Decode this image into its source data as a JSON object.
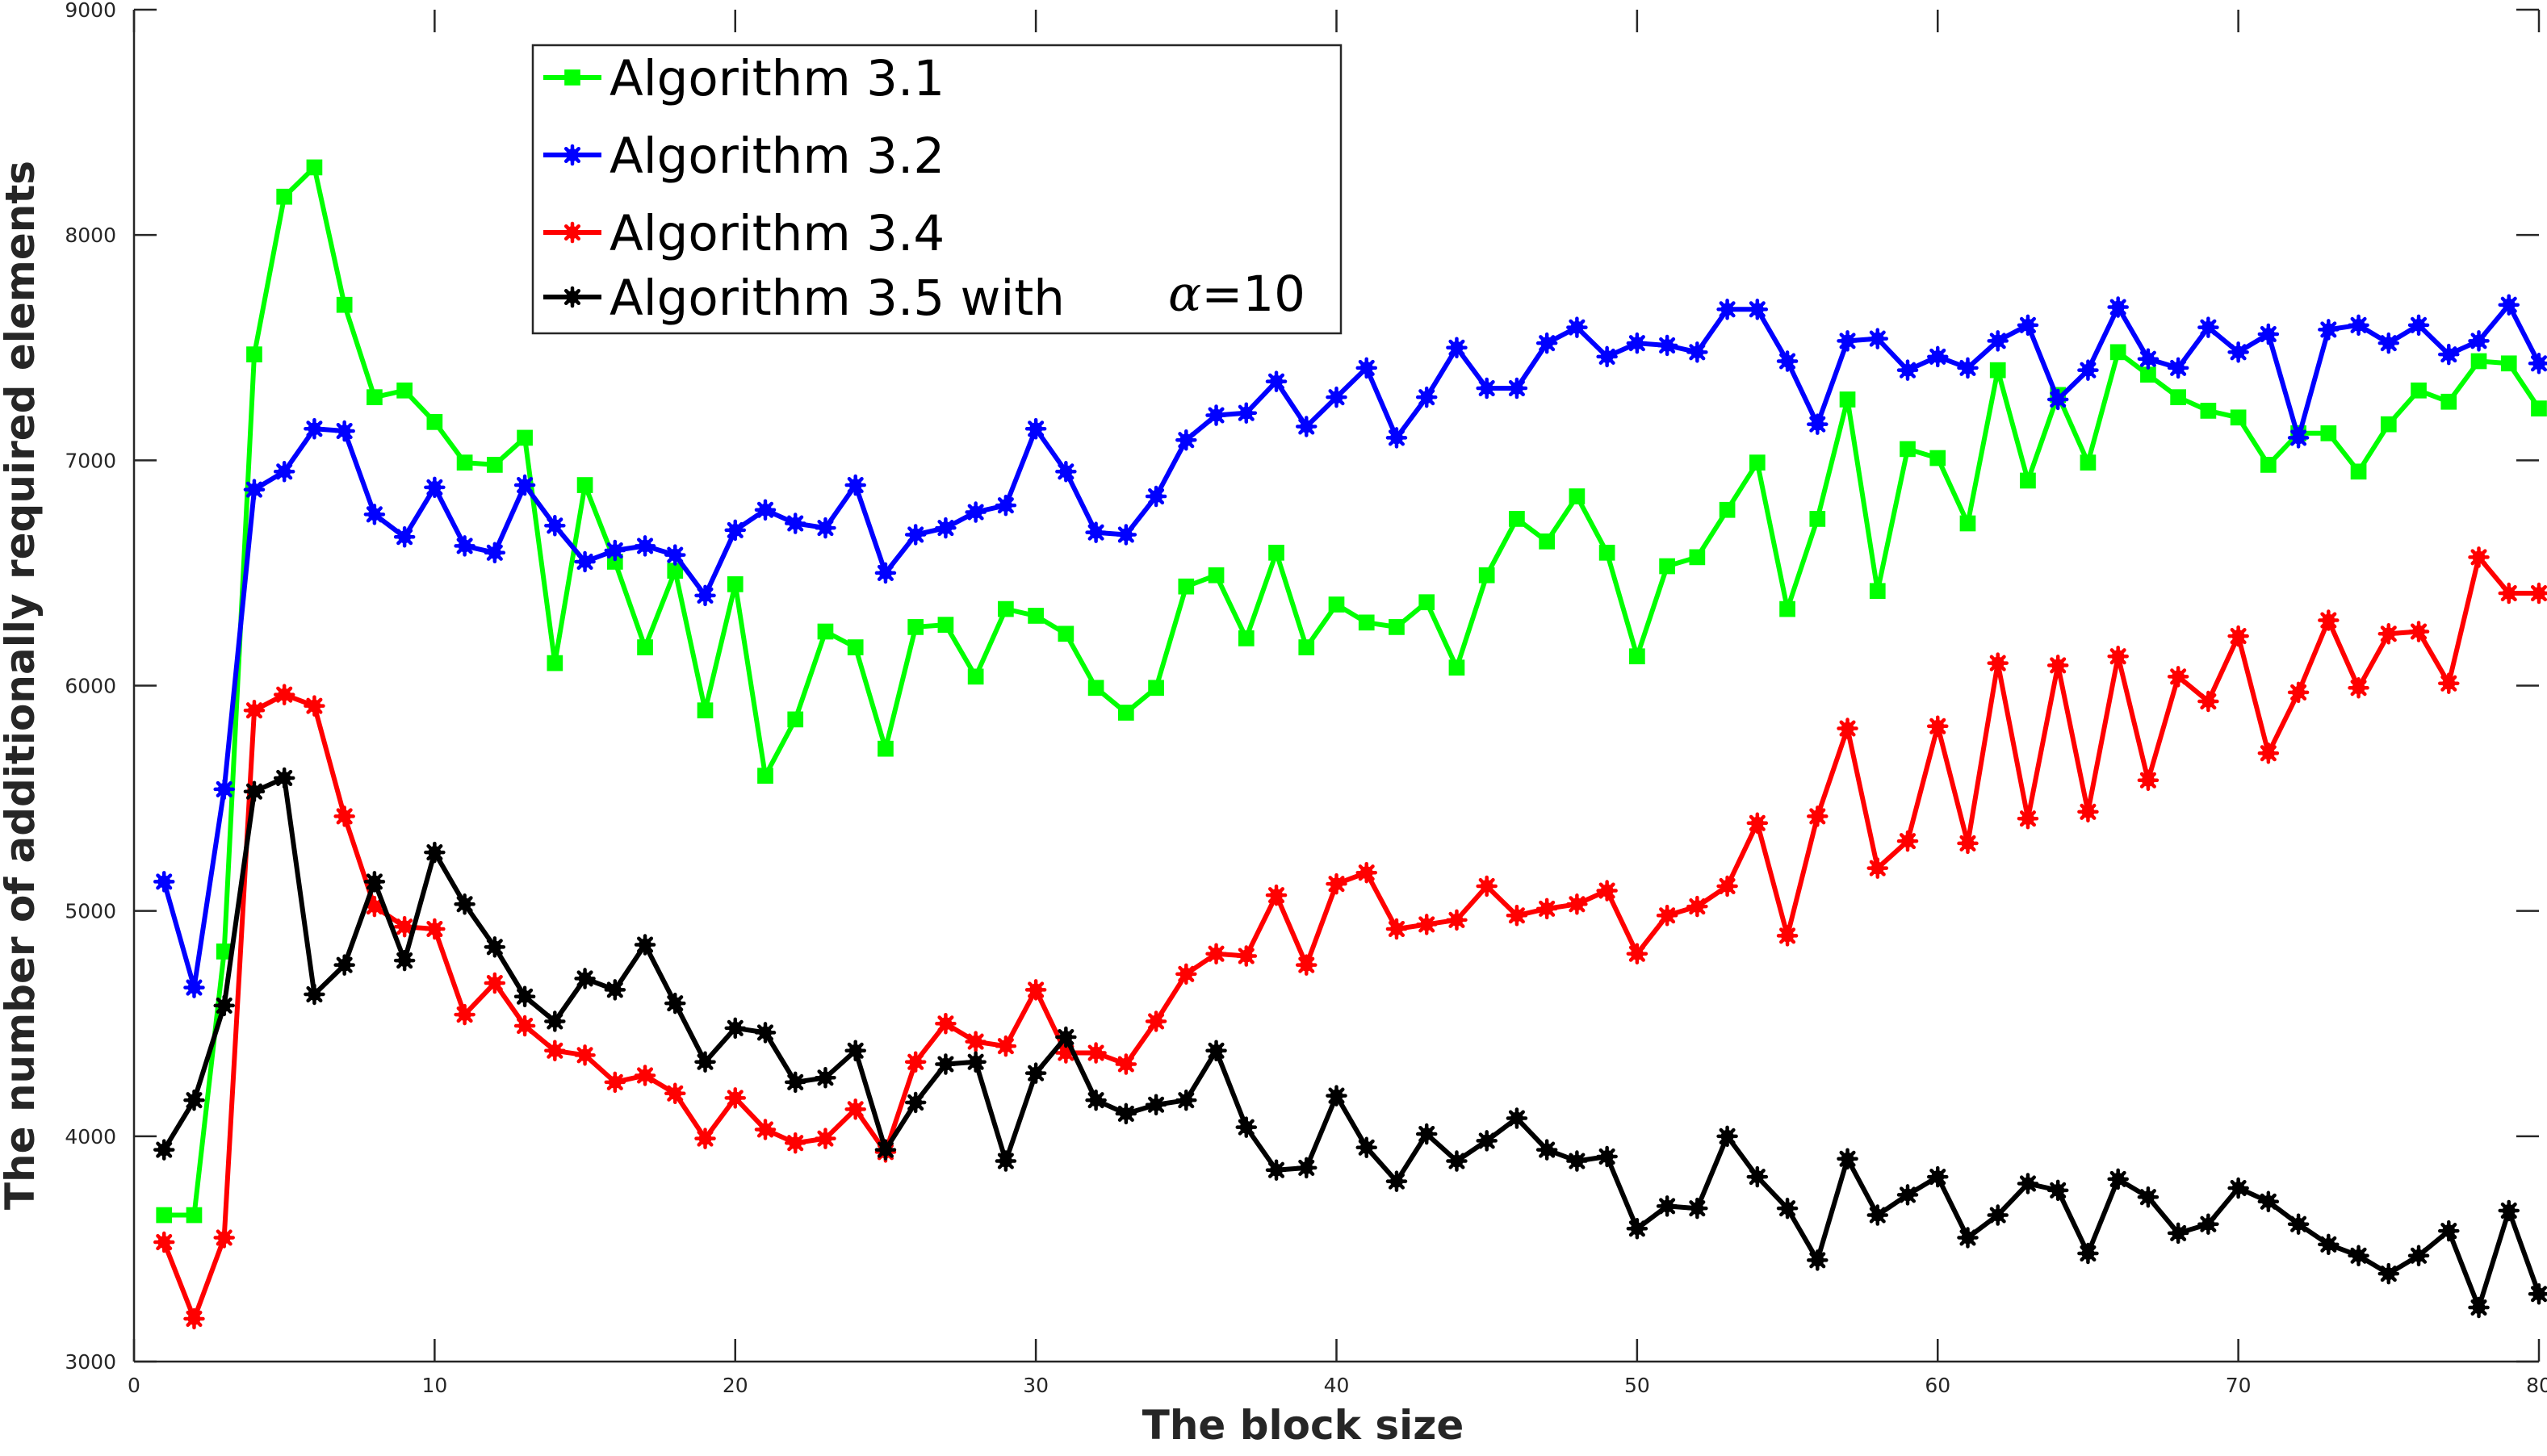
{
  "chart_data": {
    "type": "line",
    "xlabel": "The block size",
    "ylabel": "The number of additionally required elements",
    "xlim": [
      0,
      80
    ],
    "ylim": [
      3000,
      9000
    ],
    "xticks": [
      0,
      10,
      20,
      30,
      40,
      50,
      60,
      70,
      80
    ],
    "yticks": [
      3000,
      4000,
      5000,
      6000,
      7000,
      8000,
      9000
    ],
    "x": [
      1,
      2,
      3,
      4,
      5,
      6,
      7,
      8,
      9,
      10,
      11,
      12,
      13,
      14,
      15,
      16,
      17,
      18,
      19,
      20,
      21,
      22,
      23,
      24,
      25,
      26,
      27,
      28,
      29,
      30,
      31,
      32,
      33,
      34,
      35,
      36,
      37,
      38,
      39,
      40,
      41,
      42,
      43,
      44,
      45,
      46,
      47,
      48,
      49,
      50,
      51,
      52,
      53,
      54,
      55,
      56,
      57,
      58,
      59,
      60,
      61,
      62,
      63,
      64,
      65,
      66,
      67,
      68,
      69,
      70,
      71,
      72,
      73,
      74,
      75,
      76,
      77,
      78,
      79,
      80
    ],
    "grid": false,
    "legend_position": "top-left",
    "series": [
      {
        "name": "Algorithm 3.1",
        "color": "#00ff00",
        "marker": "square",
        "values": [
          3650,
          3650,
          4820,
          7470,
          8170,
          8300,
          7690,
          7280,
          7310,
          7170,
          6990,
          6980,
          7100,
          6100,
          6890,
          6550,
          6170,
          6510,
          5890,
          6450,
          5600,
          5850,
          6240,
          6170,
          5720,
          6260,
          6270,
          6040,
          6340,
          6310,
          6230,
          5990,
          5880,
          5990,
          6440,
          6490,
          6210,
          6590,
          6170,
          6360,
          6280,
          6260,
          6370,
          6080,
          6490,
          6740,
          6640,
          6840,
          6590,
          6130,
          6530,
          6570,
          6780,
          6990,
          6340,
          6740,
          7270,
          6420,
          7050,
          7010,
          6720,
          7400,
          6910,
          7290,
          6990,
          7480,
          7380,
          7280,
          7220,
          7190,
          6980,
          7120,
          7120,
          6950,
          7160,
          7310,
          7260,
          7440,
          7430,
          7230
        ]
      },
      {
        "name": "Algorithm 3.2",
        "color": "#0000ff",
        "marker": "star",
        "values": [
          5130,
          4660,
          5540,
          6870,
          6950,
          7140,
          7130,
          6760,
          6660,
          6880,
          6620,
          6590,
          6890,
          6710,
          6550,
          6600,
          6620,
          6580,
          6400,
          6690,
          6780,
          6720,
          6700,
          6890,
          6500,
          6670,
          6700,
          6770,
          6800,
          7140,
          6950,
          6680,
          6670,
          6840,
          7090,
          7200,
          7210,
          7350,
          7150,
          7280,
          7410,
          7100,
          7280,
          7500,
          7320,
          7320,
          7520,
          7590,
          7460,
          7520,
          7510,
          7480,
          7670,
          7670,
          7440,
          7160,
          7530,
          7540,
          7400,
          7460,
          7410,
          7530,
          7600,
          7270,
          7400,
          7680,
          7450,
          7410,
          7590,
          7480,
          7560,
          7100,
          7580,
          7600,
          7520,
          7600,
          7470,
          7530,
          7690,
          7430
        ]
      },
      {
        "name": "Algorithm 3.4",
        "color": "#ff0000",
        "marker": "star",
        "values": [
          3530,
          3190,
          3550,
          5890,
          5960,
          5910,
          5420,
          5020,
          4930,
          4920,
          4540,
          4680,
          4490,
          4380,
          4360,
          4240,
          4270,
          4190,
          3990,
          4170,
          4030,
          3970,
          3990,
          4120,
          3930,
          4330,
          4500,
          4420,
          4400,
          4650,
          4370,
          4370,
          4320,
          4510,
          4720,
          4810,
          4800,
          5070,
          4760,
          5120,
          5170,
          4920,
          4940,
          4960,
          5110,
          4980,
          5010,
          5030,
          5090,
          4810,
          4980,
          5020,
          5110,
          5390,
          4890,
          5420,
          5810,
          5190,
          5310,
          5820,
          5300,
          6100,
          5410,
          6090,
          5440,
          6130,
          5580,
          6040,
          5930,
          6220,
          5700,
          5970,
          6290,
          5990,
          6230,
          6240,
          6010,
          6570,
          6410,
          6410
        ]
      },
      {
        "name": "Algorithm 3.5 with",
        "color": "#000000",
        "marker": "star",
        "values": [
          3940,
          4160,
          4580,
          5530,
          5590,
          4630,
          4760,
          5130,
          4780,
          5260,
          5030,
          4840,
          4620,
          4510,
          4700,
          4650,
          4850,
          4590,
          4330,
          4480,
          4460,
          4240,
          4260,
          4380,
          3940,
          4150,
          4320,
          4330,
          3890,
          4280,
          4440,
          4160,
          4100,
          4140,
          4160,
          4380,
          4040,
          3850,
          3860,
          4180,
          3950,
          3800,
          4010,
          3890,
          3980,
          4080,
          3940,
          3890,
          3910,
          3590,
          3690,
          3680,
          4000,
          3820,
          3680,
          3450,
          3900,
          3650,
          3740,
          3820,
          3550,
          3650,
          3790,
          3760,
          3480,
          3810,
          3730,
          3570,
          3610,
          3770,
          3710,
          3610,
          3520,
          3470,
          3390,
          3470,
          3580,
          3240,
          3670,
          3300
        ]
      }
    ]
  },
  "legend": {
    "entries": [
      "Algorithm 3.1",
      "Algorithm 3.2",
      "Algorithm 3.4",
      "Algorithm 3.5 with"
    ],
    "suffix_symbol": "α",
    "suffix_value": "=10"
  }
}
